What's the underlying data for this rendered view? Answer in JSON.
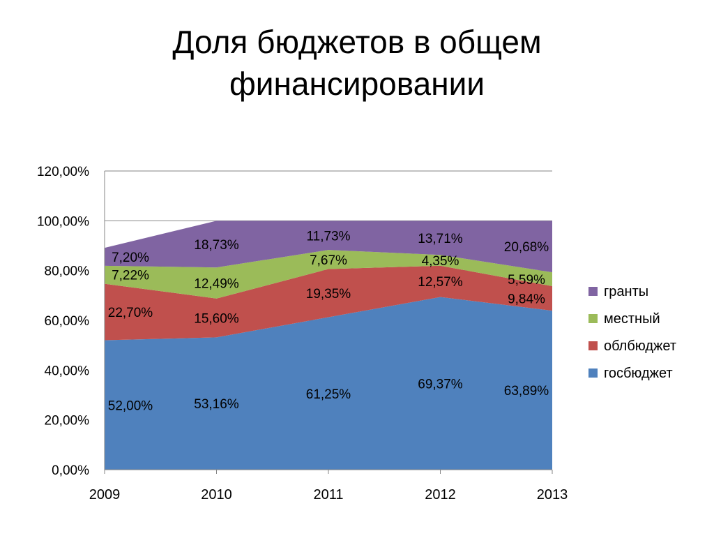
{
  "slide": {
    "title_line1": "Доля бюджетов в общем",
    "title_line2": "финансировании"
  },
  "chart_data": {
    "type": "area",
    "stacked": true,
    "title": "Доля бюджетов в общем финансировании",
    "categories": [
      "2009",
      "2010",
      "2011",
      "2012",
      "2013"
    ],
    "series": [
      {
        "name": "госбюджет",
        "color": "#4F81BD",
        "values": [
          52.0,
          53.16,
          61.25,
          69.37,
          63.89
        ],
        "labels": [
          "52,00%",
          "53,16%",
          "61,25%",
          "69,37%",
          "63,89%"
        ]
      },
      {
        "name": "облбюджет",
        "color": "#C0504D",
        "values": [
          22.7,
          15.6,
          19.35,
          12.57,
          9.84
        ],
        "labels": [
          "22,70%",
          "15,60%",
          "19,35%",
          "12,57%",
          "9,84%"
        ]
      },
      {
        "name": "местный",
        "color": "#9BBB59",
        "values": [
          7.22,
          12.49,
          7.67,
          4.35,
          5.59
        ],
        "labels": [
          "7,22%",
          "12,49%",
          "7,67%",
          "4,35%",
          "5,59%"
        ]
      },
      {
        "name": "гранты",
        "color": "#8064A2",
        "values": [
          7.2,
          18.73,
          11.73,
          13.71,
          20.68
        ],
        "labels": [
          "7,20%",
          "18,73%",
          "11,73%",
          "13,71%",
          "20,68%"
        ]
      }
    ],
    "y_ticks": [
      "0,00%",
      "20,00%",
      "40,00%",
      "60,00%",
      "80,00%",
      "100,00%",
      "120,00%"
    ],
    "ylim": [
      0,
      120
    ],
    "grid": true,
    "clip_max": 100,
    "legend_position": "right"
  }
}
